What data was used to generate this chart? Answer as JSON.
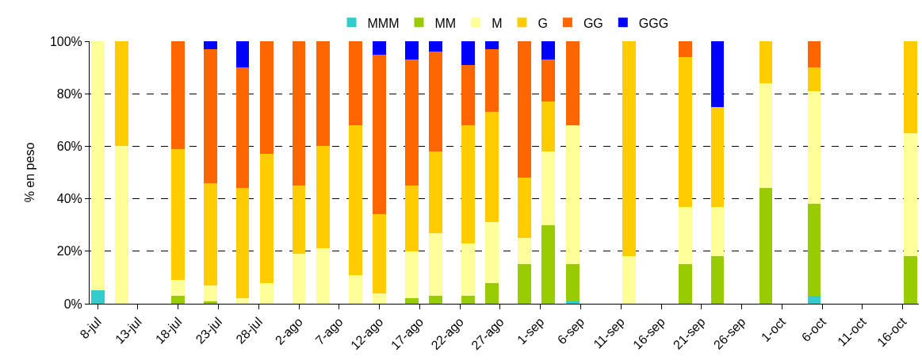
{
  "chart_data": {
    "type": "bar",
    "stacked": true,
    "ylabel": "% en peso",
    "x": [
      "--07-08",
      "--07-11",
      "--07-18",
      "--07-22",
      "--07-26",
      "--07-29",
      "--08-02",
      "--08-05",
      "--08-09",
      "--08-12",
      "--08-16",
      "--08-19",
      "--08-23",
      "--08-26",
      "--08-30",
      "--09-02",
      "--09-05",
      "--09-12",
      "--09-19",
      "--09-23",
      "--09-29",
      "--10-05",
      "--10-17"
    ],
    "series": [
      {
        "name": "MMM",
        "color": "#33cccc",
        "values": [
          5,
          null,
          null,
          null,
          null,
          null,
          null,
          null,
          null,
          null,
          null,
          null,
          null,
          null,
          null,
          null,
          1,
          null,
          null,
          null,
          null,
          3,
          null
        ]
      },
      {
        "name": "MM",
        "color": "#99cc00",
        "values": [
          null,
          null,
          3,
          1,
          null,
          null,
          null,
          null,
          null,
          null,
          2,
          3,
          3,
          8,
          15,
          30,
          14,
          null,
          15,
          18,
          44,
          35,
          18
        ]
      },
      {
        "name": "M",
        "color": "#ffff99",
        "values": [
          95,
          60,
          6,
          6,
          2,
          8,
          19,
          21,
          11,
          4,
          18,
          24,
          20,
          23,
          10,
          28,
          53,
          18,
          22,
          19,
          40,
          43,
          47
        ]
      },
      {
        "name": "G",
        "color": "#ffcc00",
        "values": [
          null,
          40,
          50,
          39,
          42,
          49,
          26,
          39,
          57,
          30,
          25,
          31,
          45,
          42,
          23,
          19,
          null,
          82,
          57,
          38,
          16,
          9,
          35
        ]
      },
      {
        "name": "GG",
        "color": "#ff6600",
        "values": [
          null,
          null,
          41,
          51,
          46,
          43,
          55,
          40,
          32,
          61,
          48,
          38,
          23,
          24,
          52,
          16,
          32,
          null,
          6,
          null,
          null,
          10,
          null
        ]
      },
      {
        "name": "GGG",
        "color": "#0000ff",
        "values": [
          null,
          null,
          null,
          3,
          10,
          null,
          null,
          null,
          null,
          5,
          7,
          4,
          9,
          3,
          null,
          7,
          null,
          null,
          null,
          25,
          null,
          null,
          null
        ]
      }
    ],
    "xlim": [
      "--07-07",
      "--10-18"
    ],
    "xticks": [
      {
        "value": "--07-08",
        "label": "8-jul"
      },
      {
        "value": "--07-13",
        "label": "13-jul"
      },
      {
        "value": "--07-18",
        "label": "18-jul"
      },
      {
        "value": "--07-23",
        "label": "23-jul"
      },
      {
        "value": "--07-28",
        "label": "28-jul"
      },
      {
        "value": "--08-02",
        "label": "2-ago"
      },
      {
        "value": "--08-07",
        "label": "7-ago"
      },
      {
        "value": "--08-12",
        "label": "12-ago"
      },
      {
        "value": "--08-17",
        "label": "17-ago"
      },
      {
        "value": "--08-22",
        "label": "22-ago"
      },
      {
        "value": "--08-27",
        "label": "27-ago"
      },
      {
        "value": "--09-01",
        "label": "1-sep"
      },
      {
        "value": "--09-06",
        "label": "6-sep"
      },
      {
        "value": "--09-11",
        "label": "11-sep"
      },
      {
        "value": "--09-16",
        "label": "16-sep"
      },
      {
        "value": "--09-21",
        "label": "21-sep"
      },
      {
        "value": "--09-26",
        "label": "26-sep"
      },
      {
        "value": "--10-01",
        "label": "1-oct"
      },
      {
        "value": "--10-06",
        "label": "6-oct"
      },
      {
        "value": "--10-11",
        "label": "11-oct"
      },
      {
        "value": "--10-16",
        "label": "16-oct"
      }
    ],
    "ylim": [
      0,
      100
    ],
    "yticks": [
      {
        "value": 0,
        "label": "0%"
      },
      {
        "value": 20,
        "label": "20%"
      },
      {
        "value": 40,
        "label": "40%"
      },
      {
        "value": 60,
        "label": "60%"
      },
      {
        "value": 80,
        "label": "80%"
      },
      {
        "value": 100,
        "label": "100%"
      }
    ],
    "grid": "y",
    "legend": "top"
  }
}
